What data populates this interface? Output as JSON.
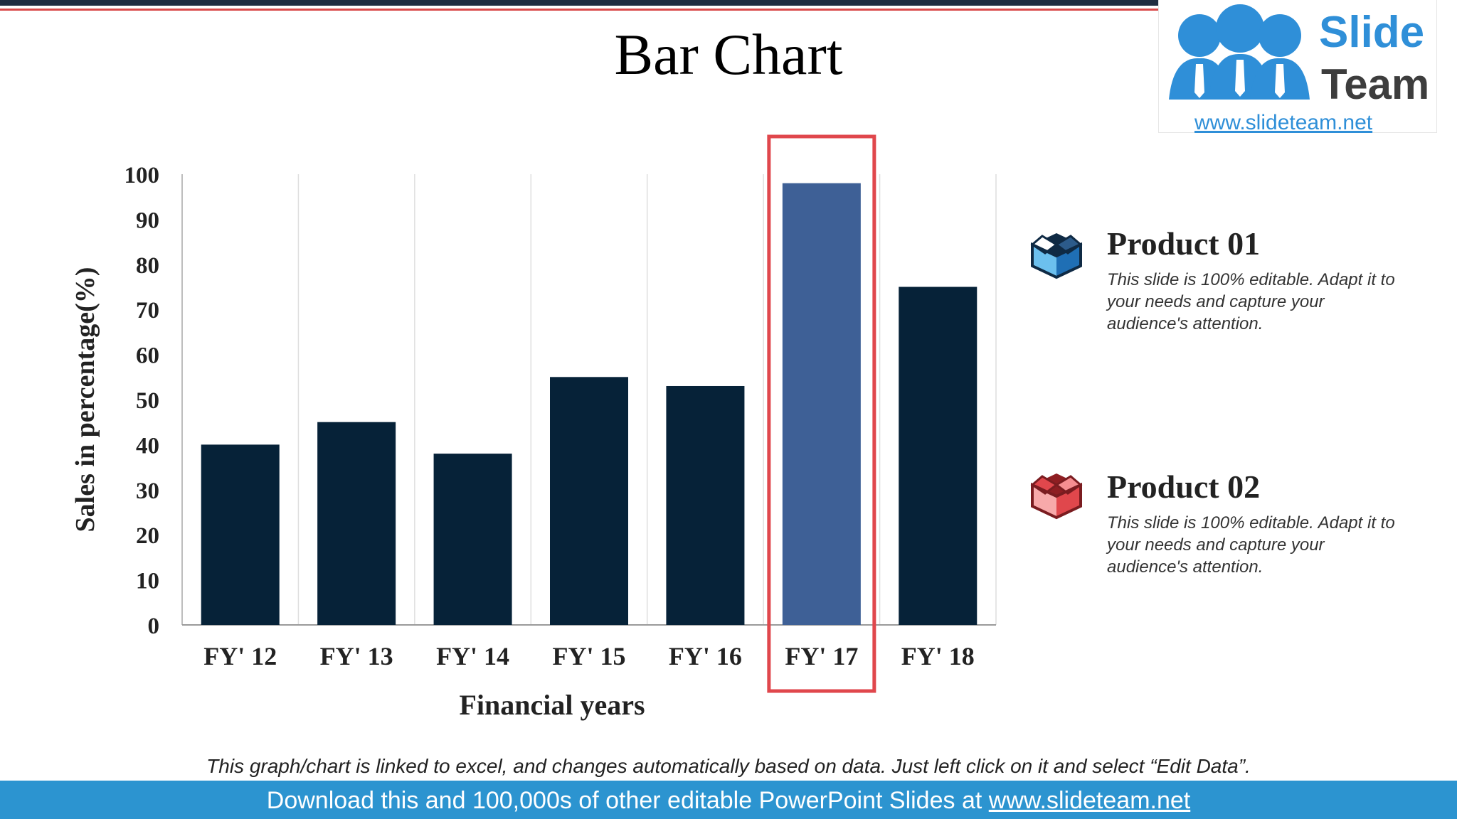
{
  "slide": {
    "title": "Bar Chart",
    "note": "This graph/chart is linked to excel, and changes automatically based on data. Just left click on it and select “Edit Data”."
  },
  "logo": {
    "name_line1": "Slide",
    "name_line2": "Team",
    "url": "www.slideteam.net"
  },
  "legend": [
    {
      "title": "Product 01",
      "desc": "This slide is 100% editable. Adapt it to your needs and capture your audience's attention.",
      "icon": "blue-box-icon",
      "color": "#1f6fb5"
    },
    {
      "title": "Product 02",
      "desc": "This slide is 100% editable. Adapt it to your needs and capture your audience's attention.",
      "icon": "red-box-icon",
      "color": "#e0474c"
    }
  ],
  "footer": {
    "text": "Download this and 100,000s of other editable PowerPoint Slides at ",
    "link": "www.slideteam.net"
  },
  "colors": {
    "bar": "#062238",
    "highlight_bar": "#3e6096",
    "highlight_box": "#e0474c",
    "footer": "#2c94d0"
  },
  "chart_data": {
    "type": "bar",
    "categories": [
      "FY' 12",
      "FY' 13",
      "FY' 14",
      "FY' 15",
      "FY' 16",
      "FY' 17",
      "FY' 18"
    ],
    "values": [
      40,
      45,
      38,
      55,
      53,
      98,
      75
    ],
    "highlight_category": "FY' 17",
    "xlabel": "Financial years",
    "ylabel": "Sales in percentage(%)",
    "ylim": [
      0,
      100
    ],
    "yticks": [
      0,
      10,
      20,
      30,
      40,
      50,
      60,
      70,
      80,
      90,
      100
    ],
    "grid": "vertical"
  }
}
